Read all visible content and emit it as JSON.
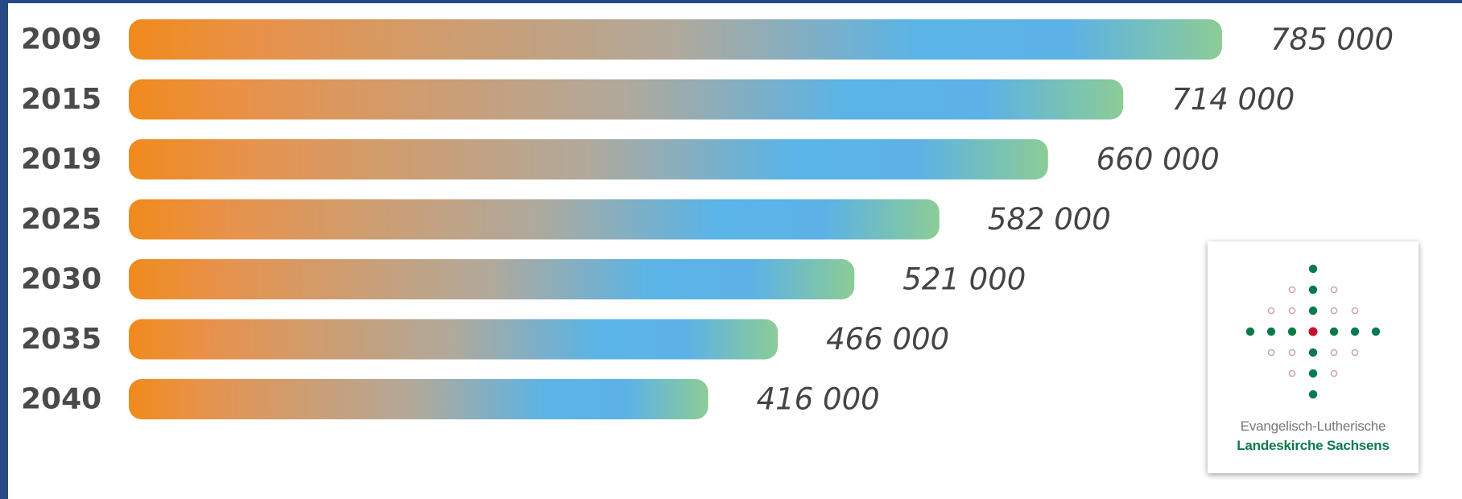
{
  "chart_data": {
    "type": "bar",
    "orientation": "horizontal",
    "categories": [
      "2009",
      "2015",
      "2019",
      "2025",
      "2030",
      "2035",
      "2040"
    ],
    "values": [
      785000,
      714000,
      660000,
      582000,
      521000,
      466000,
      416000
    ],
    "value_labels": [
      "785 000",
      "714 000",
      "660 000",
      "582 000",
      "521 000",
      "466 000",
      "416 000"
    ],
    "title": "",
    "xlabel": "",
    "ylabel": "",
    "xlim": [
      0,
      785000
    ],
    "grid": false,
    "legend": "none",
    "bar_gradient": [
      "#f08a1c",
      "#e8924a",
      "#b0a99c",
      "#5ab4e6",
      "#5cb2e6",
      "#8ccc96"
    ],
    "year_label_color": "#4a4a4a",
    "value_label_color": "#444444"
  },
  "logo": {
    "line1": "Evangelisch-Lutherische",
    "line2": "Landeskirche Sachsens",
    "colors": {
      "green": "#0b7a4b",
      "red": "#c8102e",
      "outline": "#c9a0a5"
    },
    "icon": "cross-of-dots-icon"
  }
}
